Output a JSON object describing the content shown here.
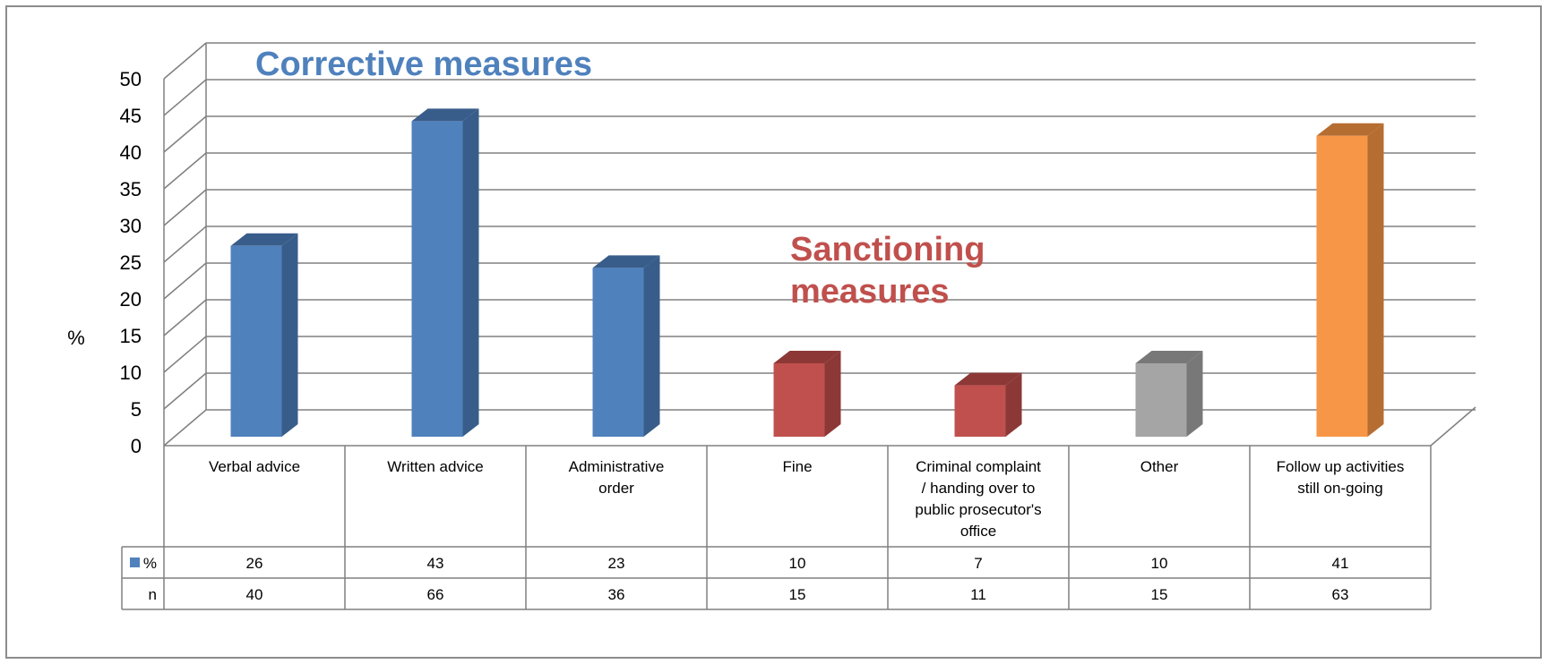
{
  "chart_data": {
    "type": "bar",
    "ylabel": "%",
    "ylim": [
      0,
      50
    ],
    "yticks": [
      0,
      5,
      10,
      15,
      20,
      25,
      30,
      35,
      40,
      45,
      50
    ],
    "grid": true,
    "categories": [
      [
        "Verbal advice"
      ],
      [
        "Written advice"
      ],
      [
        "Administrative",
        "order"
      ],
      [
        "Fine"
      ],
      [
        "Criminal complaint",
        "/ handing over to",
        "public prosecutor's",
        "office"
      ],
      [
        "Other"
      ],
      [
        "Follow up activities",
        "still on-going"
      ]
    ],
    "series": [
      {
        "name": "%",
        "values": [
          26,
          43,
          23,
          10,
          7,
          10,
          41
        ],
        "colors": [
          "#4f81bd",
          "#4f81bd",
          "#4f81bd",
          "#c0504d",
          "#c0504d",
          "#a5a5a5",
          "#f79646"
        ],
        "side_colors": [
          "#385d8a",
          "#385d8a",
          "#385d8a",
          "#8c3836",
          "#8c3836",
          "#787878",
          "#b66d31"
        ]
      }
    ],
    "table": {
      "rows": [
        {
          "label": "%",
          "has_legend_key": true,
          "values": [
            26,
            43,
            23,
            10,
            7,
            10,
            41
          ]
        },
        {
          "label": "n",
          "has_legend_key": false,
          "values": [
            40,
            66,
            36,
            15,
            11,
            15,
            63
          ]
        }
      ]
    },
    "annotations": [
      {
        "lines": [
          "Corrective measures"
        ],
        "color": "#4f81bd"
      },
      {
        "lines": [
          "Sanctioning",
          "measures"
        ],
        "color": "#c0504d"
      }
    ],
    "legend_key_color": "#4f81bd"
  }
}
